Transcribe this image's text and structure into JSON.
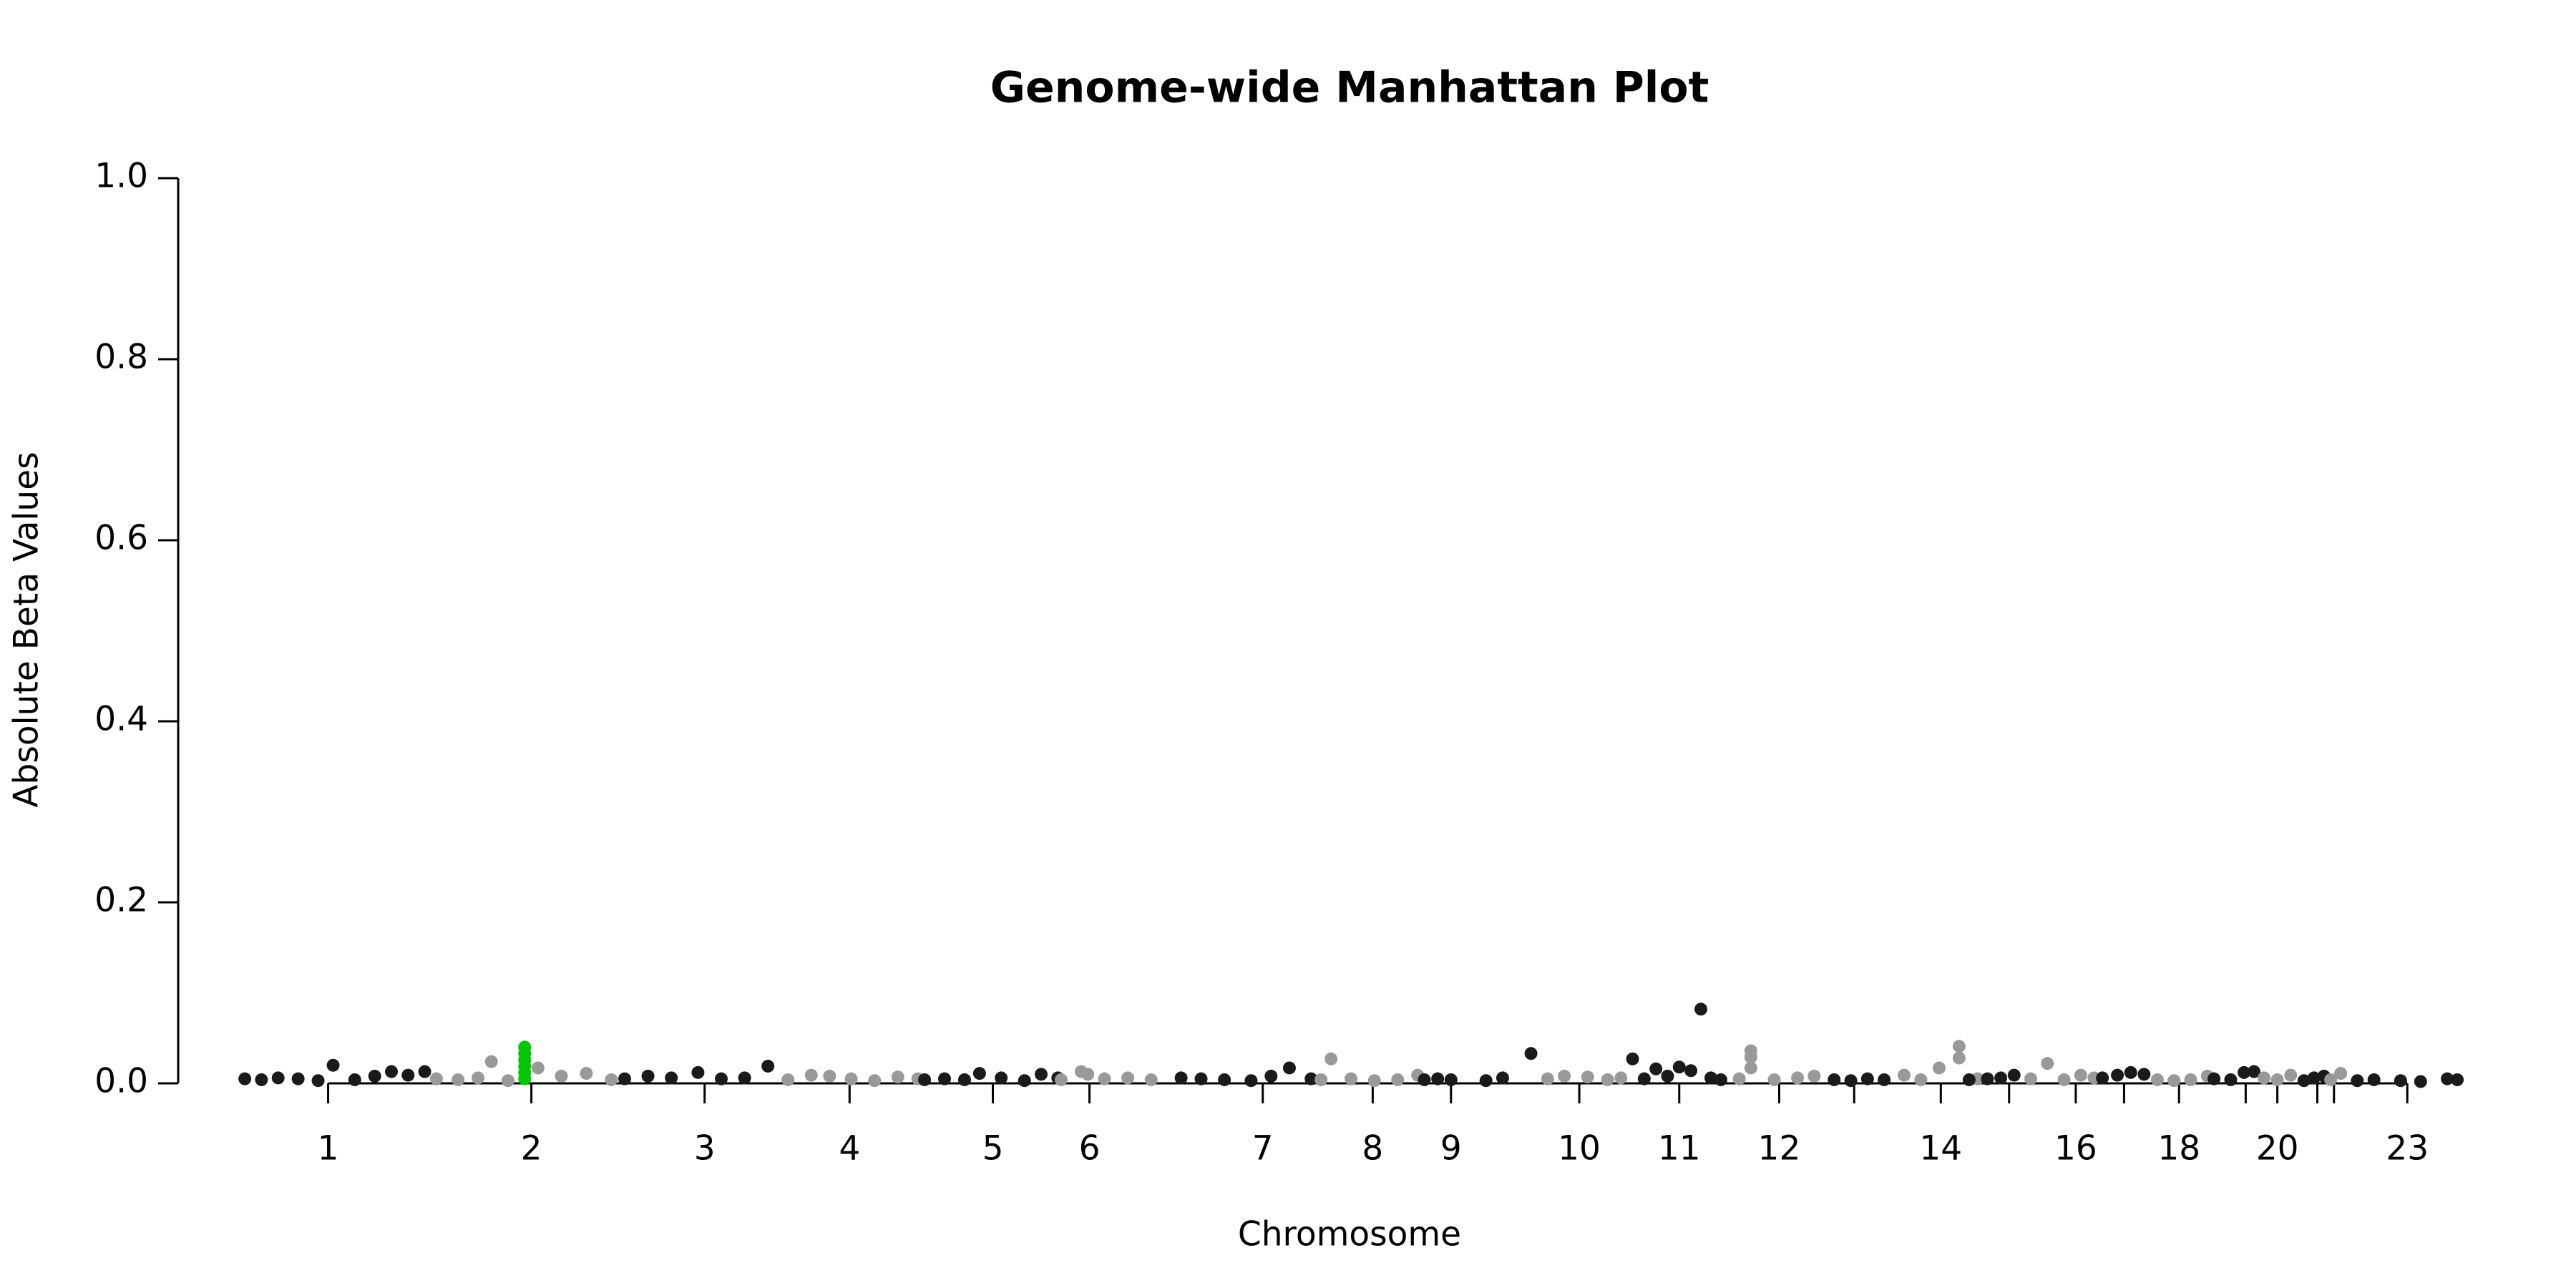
{
  "chart_data": {
    "type": "scatter",
    "title": "Genome-wide Manhattan Plot",
    "x_label": "Chromosome",
    "y_label": "Absolute Beta Values",
    "xlim": [
      0,
      1380
    ],
    "ylim": [
      0,
      1
    ],
    "yticks": [
      {
        "value": 0,
        "label": "0.0"
      },
      0.2,
      0.4,
      0.6,
      0.8,
      {
        "value": 1,
        "label": "1.0"
      }
    ],
    "xticks": [
      {
        "value": 90,
        "label": "1"
      },
      {
        "value": 212,
        "label": "2"
      },
      {
        "value": 316,
        "label": "3"
      },
      {
        "value": 403,
        "label": "4"
      },
      {
        "value": 489,
        "label": "5"
      },
      {
        "value": 547,
        "label": "6"
      },
      {
        "value": 651,
        "label": "7"
      },
      {
        "value": 717,
        "label": "8"
      },
      {
        "value": 764,
        "label": "9"
      },
      {
        "value": 841,
        "label": "10"
      },
      {
        "value": 901,
        "label": "11"
      },
      {
        "value": 961,
        "label": "12"
      },
      {
        "value": 1006,
        "label": null
      },
      {
        "value": 1058,
        "label": "14"
      },
      {
        "value": 1099,
        "label": null
      },
      {
        "value": 1139,
        "label": "16"
      },
      {
        "value": 1168,
        "label": null
      },
      {
        "value": 1201,
        "label": "18"
      },
      {
        "value": 1241,
        "label": null
      },
      {
        "value": 1260,
        "label": "20"
      },
      {
        "value": 1284,
        "label": null
      },
      {
        "value": 1294,
        "label": null
      },
      {
        "value": 1338,
        "label": "23"
      }
    ],
    "series": [
      {
        "color": "#1a1a1a",
        "x": [
          40,
          50,
          60,
          72,
          84,
          93,
          106,
          118,
          128,
          138,
          148
        ],
        "values": [
          0.005,
          0.004,
          0.006,
          0.005,
          0.003,
          0.02,
          0.004,
          0.008,
          0.013,
          0.009,
          0.013
        ]
      },
      {
        "color": "#999999",
        "x": [
          155,
          168,
          180,
          188,
          198,
          216,
          230,
          245,
          260
        ],
        "values": [
          0.005,
          0.004,
          0.006,
          0.024,
          0.003,
          0.017,
          0.008,
          0.011,
          0.004
        ]
      },
      {
        "color": "#1a1a1a",
        "x": [
          268,
          282,
          296,
          312,
          326,
          340,
          354
        ],
        "values": [
          0.005,
          0.008,
          0.006,
          0.012,
          0.005,
          0.006,
          0.019
        ]
      },
      {
        "color": "#999999",
        "x": [
          366,
          380,
          391,
          404,
          418,
          432,
          444
        ],
        "values": [
          0.004,
          0.009,
          0.008,
          0.005,
          0.003,
          0.007,
          0.005
        ]
      },
      {
        "color": "#1a1a1a",
        "x": [
          448,
          460,
          472,
          481,
          494,
          508,
          518,
          528
        ],
        "values": [
          0.004,
          0.005,
          0.004,
          0.011,
          0.006,
          0.003,
          0.01,
          0.006
        ]
      },
      {
        "color": "#999999",
        "x": [
          530,
          542,
          546,
          556,
          570,
          584
        ],
        "values": [
          0.004,
          0.013,
          0.01,
          0.005,
          0.006,
          0.004
        ]
      },
      {
        "color": "#1a1a1a",
        "x": [
          602,
          614,
          628,
          644,
          656,
          667,
          680
        ],
        "values": [
          0.006,
          0.005,
          0.004,
          0.003,
          0.008,
          0.017,
          0.005
        ]
      },
      {
        "color": "#999999",
        "x": [
          686,
          692,
          704,
          718,
          732,
          744
        ],
        "values": [
          0.004,
          0.027,
          0.005,
          0.003,
          0.004,
          0.009
        ]
      },
      {
        "color": "#1a1a1a",
        "x": [
          748,
          756,
          764,
          785,
          795,
          812
        ],
        "values": [
          0.004,
          0.005,
          0.004,
          0.003,
          0.006,
          0.033
        ]
      },
      {
        "color": "#999999",
        "x": [
          822,
          832,
          846,
          858,
          866
        ],
        "values": [
          0.005,
          0.008,
          0.007,
          0.004,
          0.006
        ]
      },
      {
        "color": "#1a1a1a",
        "x": [
          873,
          880,
          887,
          894,
          901,
          908,
          914,
          920,
          926
        ],
        "values": [
          0.027,
          0.005,
          0.016,
          0.008,
          0.018,
          0.014,
          0.082,
          0.006,
          0.004
        ]
      },
      {
        "color": "#999999",
        "x": [
          937,
          944,
          944,
          944,
          958,
          972,
          982
        ],
        "values": [
          0.005,
          0.036,
          0.029,
          0.017,
          0.004,
          0.006,
          0.008
        ]
      },
      {
        "color": "#1a1a1a",
        "x": [
          994,
          1004,
          1014,
          1024
        ],
        "values": [
          0.004,
          0.003,
          0.005,
          0.004
        ]
      },
      {
        "color": "#999999",
        "x": [
          1036,
          1046,
          1057,
          1069,
          1069,
          1080
        ],
        "values": [
          0.009,
          0.004,
          0.017,
          0.041,
          0.028,
          0.005
        ]
      },
      {
        "color": "#1a1a1a",
        "x": [
          1075,
          1086,
          1094,
          1102
        ],
        "values": [
          0.004,
          0.005,
          0.006,
          0.009
        ]
      },
      {
        "color": "#999999",
        "x": [
          1112,
          1122,
          1132,
          1142,
          1150
        ],
        "values": [
          0.005,
          0.022,
          0.004,
          0.009,
          0.006
        ]
      },
      {
        "color": "#1a1a1a",
        "x": [
          1155,
          1164,
          1172,
          1180
        ],
        "values": [
          0.006,
          0.009,
          0.012,
          0.01
        ]
      },
      {
        "color": "#999999",
        "x": [
          1188,
          1198,
          1208,
          1218
        ],
        "values": [
          0.004,
          0.003,
          0.004,
          0.008
        ]
      },
      {
        "color": "#1a1a1a",
        "x": [
          1222,
          1232,
          1240,
          1246
        ],
        "values": [
          0.005,
          0.004,
          0.012,
          0.013
        ]
      },
      {
        "color": "#999999",
        "x": [
          1252,
          1260,
          1268
        ],
        "values": [
          0.006,
          0.004,
          0.009
        ]
      },
      {
        "color": "#1a1a1a",
        "x": [
          1276,
          1282,
          1288
        ],
        "values": [
          0.003,
          0.006,
          0.008
        ]
      },
      {
        "color": "#999999",
        "x": [
          1292,
          1298
        ],
        "values": [
          0.004,
          0.011
        ]
      },
      {
        "color": "#1a1a1a",
        "x": [
          1308,
          1318,
          1334,
          1346,
          1362,
          1368
        ],
        "values": [
          0.003,
          0.004,
          0.003,
          0.002,
          0.005,
          0.004
        ]
      },
      {
        "color": "#00c800",
        "x": [
          208,
          208,
          208,
          208,
          208,
          208
        ],
        "values": [
          0.04,
          0.033,
          0.026,
          0.019,
          0.012,
          0.005
        ]
      }
    ]
  }
}
